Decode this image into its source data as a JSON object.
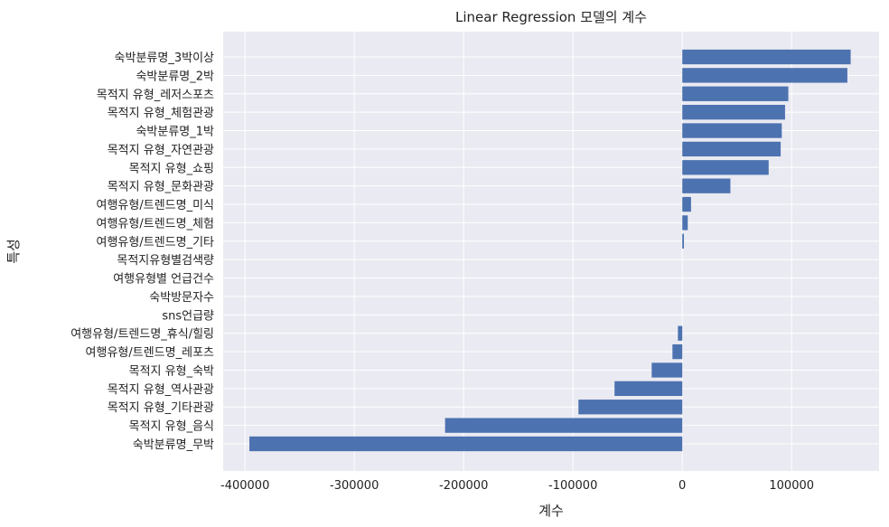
{
  "chart_data": {
    "type": "bar",
    "orientation": "horizontal",
    "title": "Linear Regression 모델의 계수",
    "xlabel": "계수",
    "ylabel": "특성",
    "xlim": [
      -420000,
      180000
    ],
    "xticks": [
      -400000,
      -300000,
      -200000,
      -100000,
      0,
      100000
    ],
    "xtick_labels": [
      "-400000",
      "-300000",
      "-200000",
      "-100000",
      "0",
      "100000"
    ],
    "grid": true,
    "bar_color": "#4c72b0",
    "background_color": "#eaeaf2",
    "categories": [
      "숙박분류명_3박이상",
      "숙박분류명_2박",
      "목적지 유형_레저스포츠",
      "목적지 유형_체험관광",
      "숙박분류명_1박",
      "목적지 유형_자연관광",
      "목적지 유형_쇼핑",
      "목적지 유형_문화관광",
      "여행유형/트렌드명_미식",
      "여행유형/트렌드명_체험",
      "여행유형/트렌드명_기타",
      "목적지유형별검색량",
      "여행유형별 언급건수",
      "숙박방문자수",
      "sns언급량",
      "여행유형/트렌드명_휴식/힐링",
      "여행유형/트렌드명_레포츠",
      "목적지 유형_숙박",
      "목적지 유형_역사관광",
      "목적지 유형_기타관광",
      "목적지 유형_음식",
      "숙박분류명_무박"
    ],
    "values": [
      154000,
      151000,
      97000,
      94000,
      91000,
      90000,
      79000,
      44000,
      8000,
      5000,
      1500,
      0,
      0,
      0,
      0,
      -4000,
      -9000,
      -28000,
      -62000,
      -95000,
      -217000,
      -396000
    ]
  }
}
